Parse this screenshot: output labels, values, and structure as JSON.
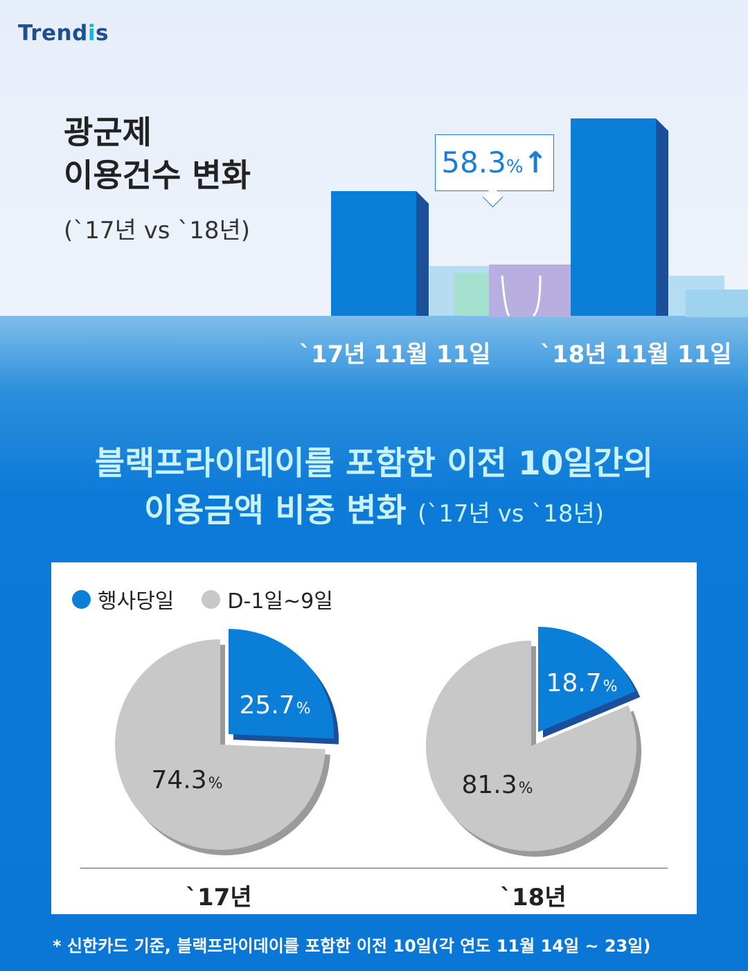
{
  "brand": {
    "logo_text": "Trendis"
  },
  "header": {
    "title_line1": "광군제",
    "title_line2": "이용건수 변화",
    "subtitle": "(`17년 vs `18년)"
  },
  "chart_data": [
    {
      "type": "bar",
      "categories": [
        "`17년 11월 11일",
        "`18년 11월 11일"
      ],
      "values": [
        100,
        158.3
      ],
      "annotation": {
        "value": "58.3",
        "unit": "%",
        "arrow": "↑"
      },
      "colors": {
        "front": "#0b7fd8",
        "side": "#1b4f9a",
        "top": "#3d8fe0"
      }
    },
    {
      "type": "pie",
      "title": "블랙프라이데이를 포함한 이전 10일간의 이용금액 비중 변화",
      "title_line1": "블랙프라이데이를 포함한 이전 10일간의",
      "title_line2": "이용금액 비중 변화",
      "title_suffix": "(`17년 vs `18년)",
      "legend": [
        "행사당일",
        "D-1일~9일"
      ],
      "colors": [
        "#0b7fd8",
        "#c8c8c8"
      ],
      "charts": [
        {
          "label": "`17년",
          "slices": [
            {
              "name": "행사당일",
              "value": 25.7
            },
            {
              "name": "D-1일~9일",
              "value": 74.3
            }
          ]
        },
        {
          "label": "`18년",
          "slices": [
            {
              "name": "행사당일",
              "value": 18.7
            },
            {
              "name": "D-1일~9일",
              "value": 81.3
            }
          ]
        }
      ]
    }
  ],
  "footnote": "* 신한카드 기준, 블랙프라이데이를 포함한 이전 10일(각 연도 11월 14일 ~ 23일)"
}
